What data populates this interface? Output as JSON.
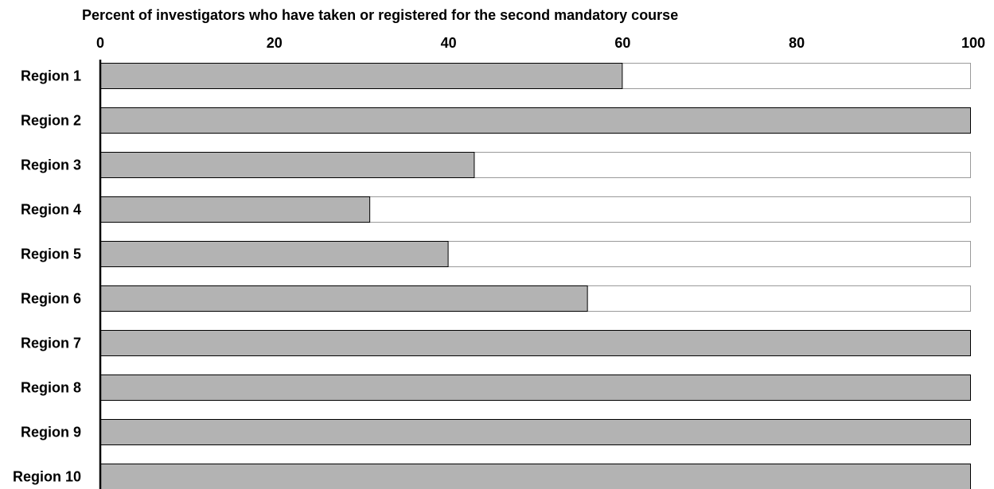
{
  "chart_data": {
    "type": "bar",
    "orientation": "horizontal",
    "title": "Percent of investigators who have taken or registered for the second mandatory course",
    "categories": [
      "Region 1",
      "Region 2",
      "Region 3",
      "Region 4",
      "Region 5",
      "Region 6",
      "Region 7",
      "Region 8",
      "Region 9",
      "Region 10"
    ],
    "values": [
      60,
      100,
      43,
      31,
      40,
      56,
      100,
      100,
      100,
      100
    ],
    "xlim": [
      0,
      100
    ],
    "xticks": [
      "0",
      "20",
      "40",
      "60",
      "80",
      "100"
    ],
    "xaxis_position": "top",
    "grid": false,
    "colors": {
      "bar_fill": "#b3b3b3",
      "bar_remainder": "#ffffff",
      "bar_stroke": "#000000",
      "remainder_stroke": "#9a9a9a",
      "axis": "#000000"
    }
  }
}
